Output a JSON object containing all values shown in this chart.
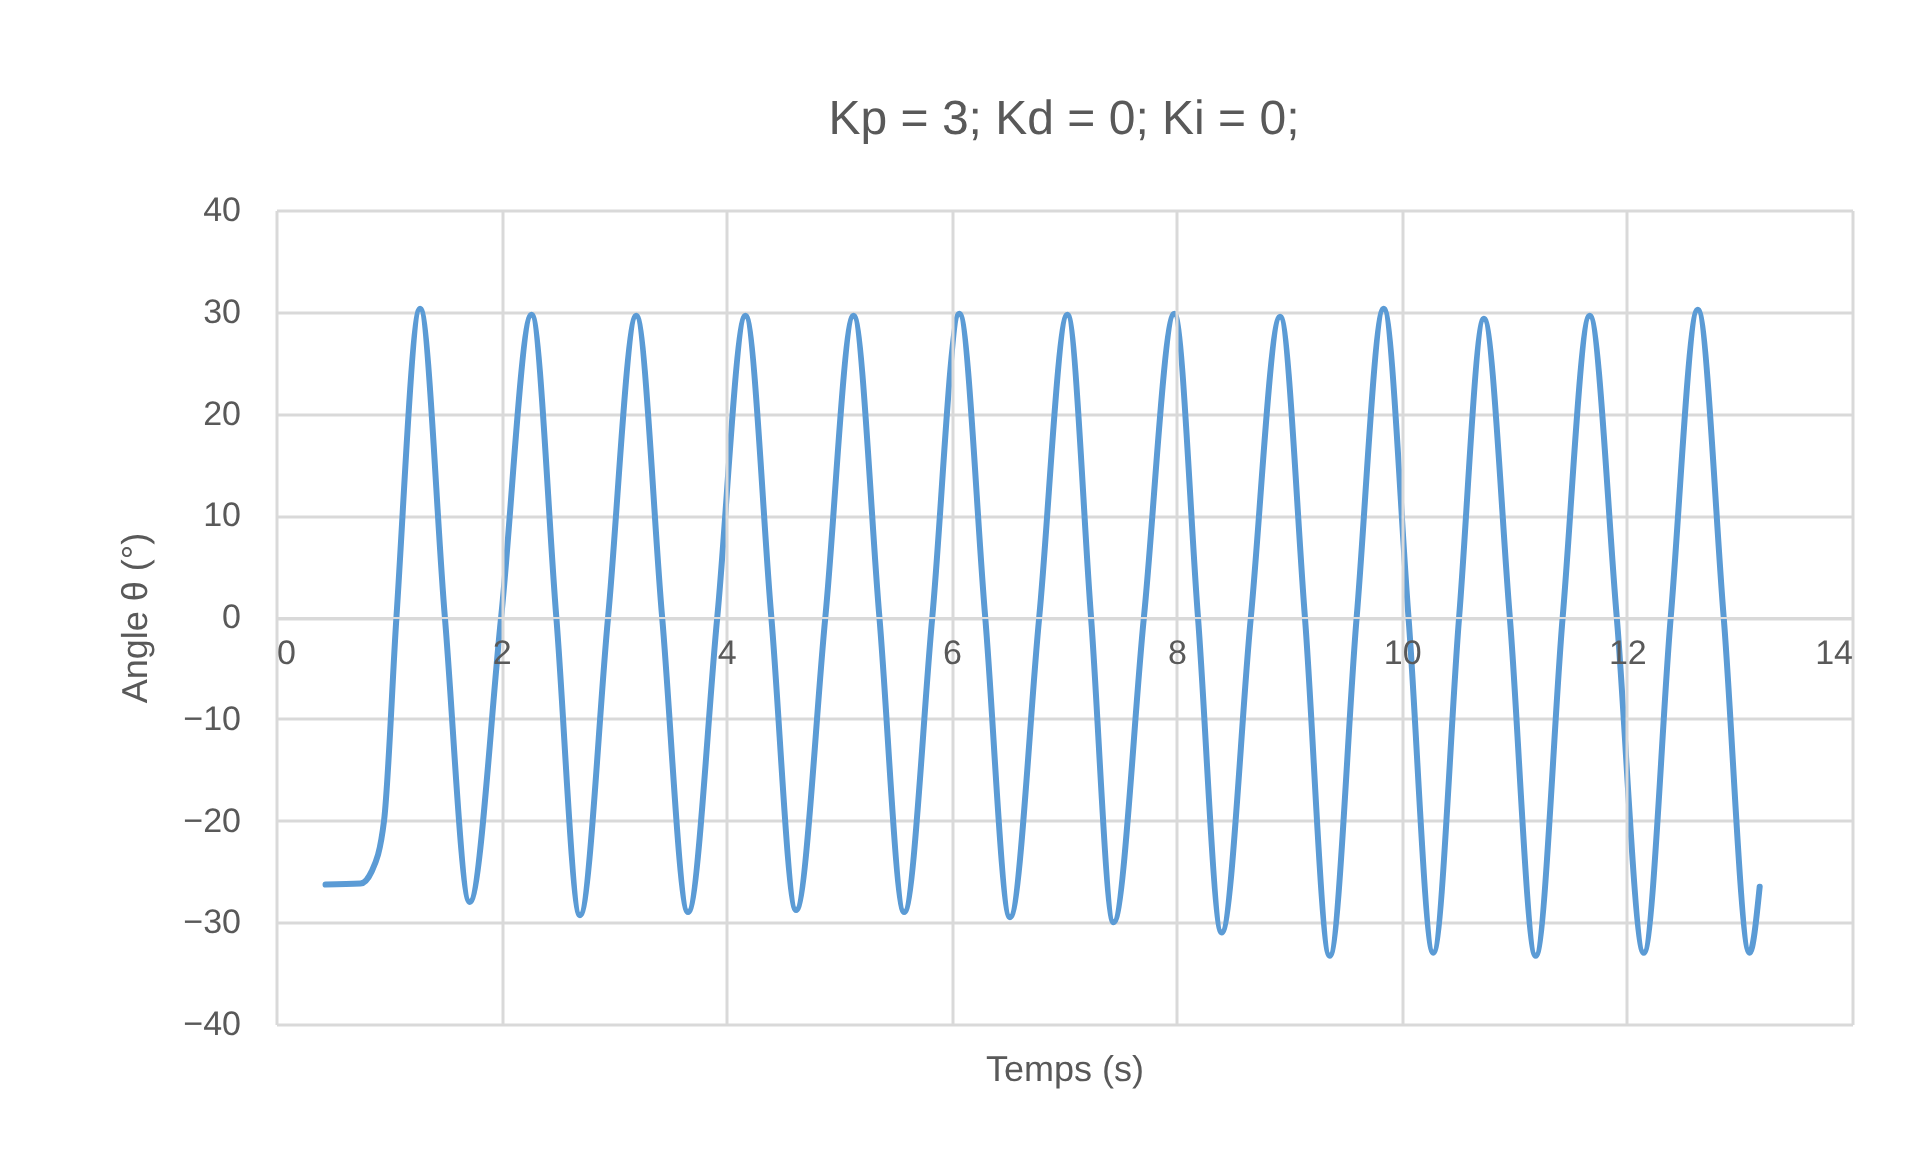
{
  "chart_data": {
    "type": "line",
    "title": "Kp = 3; Kd = 0; Ki = 0;",
    "xlabel": "Temps (s)",
    "ylabel": "Angle θ (°)",
    "xlim": [
      0,
      14
    ],
    "xticks": [
      0,
      2,
      4,
      6,
      8,
      10,
      12,
      14
    ],
    "ylim": [
      -40,
      40
    ],
    "yticks": [
      -40,
      -30,
      -20,
      -10,
      0,
      10,
      20,
      30,
      40
    ],
    "grid": true,
    "marker": "none",
    "line_style": "solid",
    "series": [
      {
        "color": "#5b9bd5",
        "x": [
          0.44,
          0.75,
          0.85,
          0.96,
          1.07,
          1.28,
          1.5,
          1.72,
          2.0,
          2.27,
          2.49,
          2.7,
          2.95,
          3.2,
          3.43,
          3.66,
          3.92,
          4.17,
          4.4,
          4.62,
          4.88,
          5.13,
          5.36,
          5.58,
          5.83,
          6.07,
          6.3,
          6.52,
          6.78,
          7.03,
          7.24,
          7.44,
          7.71,
          7.98,
          8.19,
          8.4,
          8.66,
          8.92,
          9.14,
          9.36,
          9.6,
          9.84,
          10.06,
          10.28,
          10.51,
          10.73,
          10.96,
          11.19,
          11.43,
          11.67,
          11.91,
          12.15,
          12.39,
          12.63,
          12.86,
          13.09,
          13.18
        ],
        "values": [
          -26.3,
          -26.2,
          -25,
          -20,
          0,
          30.3,
          0,
          -28,
          0,
          29.7,
          0,
          -29.3,
          0,
          29.6,
          0,
          -29,
          0,
          29.6,
          0,
          -28.8,
          0,
          29.6,
          0,
          -29,
          0,
          29.8,
          0,
          -29.5,
          0,
          29.7,
          0,
          -30,
          0,
          29.8,
          0,
          -31,
          0,
          29.5,
          0,
          -33.3,
          0,
          30.3,
          0,
          -33,
          0,
          29.3,
          0,
          -33.3,
          0,
          29.6,
          0,
          -33,
          0,
          30.2,
          0,
          -33,
          -26.5
        ]
      }
    ]
  }
}
